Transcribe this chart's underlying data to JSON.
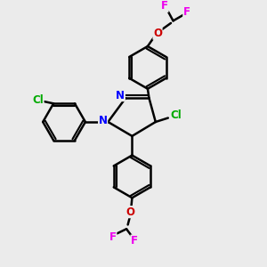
{
  "background_color": "#ebebeb",
  "atom_colors": {
    "C": "#000000",
    "N": "#0000ff",
    "O": "#cc0000",
    "Cl": "#00aa00",
    "F": "#ee00ee"
  },
  "bond_color": "#000000",
  "bond_lw": 1.8,
  "figsize": [
    3.0,
    3.0
  ],
  "dpi": 100,
  "xlim": [
    -2.5,
    4.5
  ],
  "ylim": [
    -4.5,
    4.5
  ]
}
